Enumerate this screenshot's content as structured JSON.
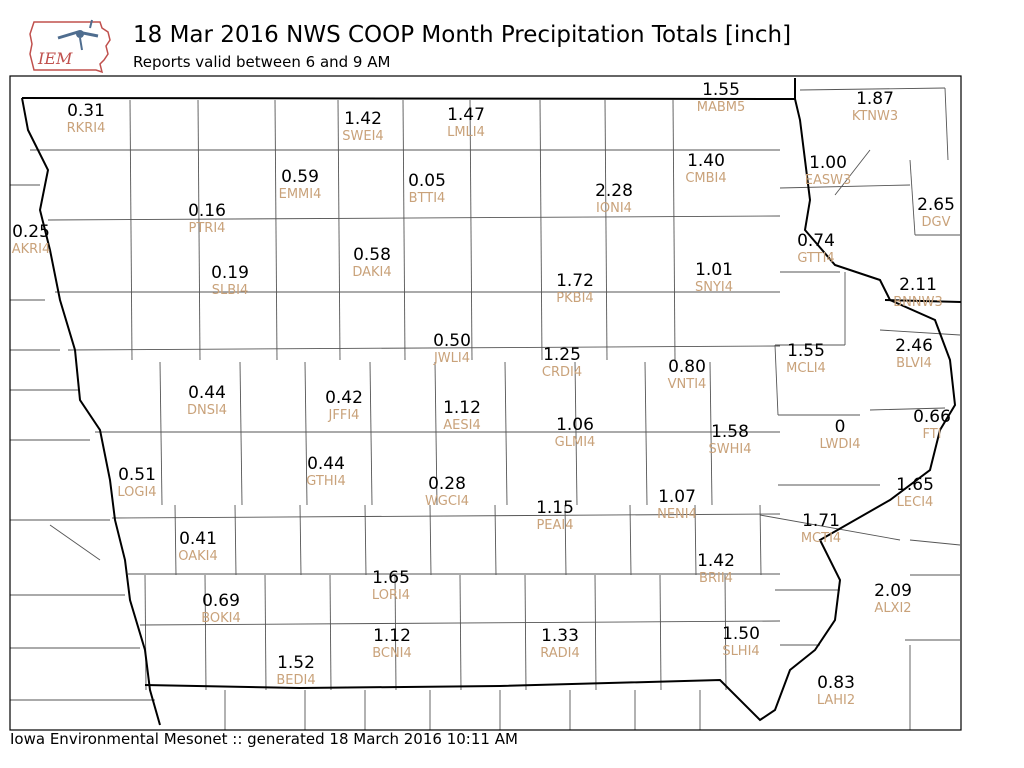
{
  "header": {
    "logo_text": "IEM",
    "title": "18 Mar 2016 NWS COOP Month Precipitation Totals [inch]",
    "subtitle": "Reports valid between 6 and 9 AM"
  },
  "footer": {
    "text": "Iowa Environmental Mesonet :: generated 18 March 2016 10:11 AM"
  },
  "colors": {
    "value": "#000000",
    "station": "#c9a27a",
    "state_line": "#000000",
    "county_line": "#555555"
  },
  "stations": [
    {
      "id": "RKRI4",
      "value": "0.31"
    },
    {
      "id": "SWEI4",
      "value": "1.42"
    },
    {
      "id": "LMLI4",
      "value": "1.47"
    },
    {
      "id": "MABM5",
      "value": "1.55"
    },
    {
      "id": "KTNW3",
      "value": "1.87"
    },
    {
      "id": "CMBI4",
      "value": "1.40"
    },
    {
      "id": "EASW3",
      "value": "1.00"
    },
    {
      "id": "EMMI4",
      "value": "0.59"
    },
    {
      "id": "BTTI4",
      "value": "0.05"
    },
    {
      "id": "IONI4",
      "value": "2.28"
    },
    {
      "id": "PTRI4",
      "value": "0.16"
    },
    {
      "id": "DGV",
      "value": "2.65"
    },
    {
      "id": "AKRI4",
      "value": "0.25"
    },
    {
      "id": "GTTI4",
      "value": "0.74"
    },
    {
      "id": "DAKI4",
      "value": "0.58"
    },
    {
      "id": "SLBI4",
      "value": "0.19"
    },
    {
      "id": "PKBI4",
      "value": "1.72"
    },
    {
      "id": "SNYI4",
      "value": "1.01"
    },
    {
      "id": "BNNW3",
      "value": "2.11"
    },
    {
      "id": "JWLI4",
      "value": "0.50"
    },
    {
      "id": "CRDI4",
      "value": "1.25"
    },
    {
      "id": "VNTI4",
      "value": "0.80"
    },
    {
      "id": "MCLI4",
      "value": "1.55"
    },
    {
      "id": "BLVI4",
      "value": "2.46"
    },
    {
      "id": "DNSI4",
      "value": "0.44"
    },
    {
      "id": "JFFI4",
      "value": "0.42"
    },
    {
      "id": "AESI4",
      "value": "1.12"
    },
    {
      "id": "GLMI4",
      "value": "1.06"
    },
    {
      "id": "SWHI4",
      "value": "1.58"
    },
    {
      "id": "LWDI4",
      "value": "0"
    },
    {
      "id": "FTI",
      "value": "0.66"
    },
    {
      "id": "LOGI4",
      "value": "0.51"
    },
    {
      "id": "GTHI4",
      "value": "0.44"
    },
    {
      "id": "WGCI4",
      "value": "0.28"
    },
    {
      "id": "LECI4",
      "value": "1.65"
    },
    {
      "id": "PEAI4",
      "value": "1.15"
    },
    {
      "id": "NENI4",
      "value": "1.07"
    },
    {
      "id": "MCTI4",
      "value": "1.71"
    },
    {
      "id": "OAKI4",
      "value": "0.41"
    },
    {
      "id": "BRII4",
      "value": "1.42"
    },
    {
      "id": "LORI4",
      "value": "1.65"
    },
    {
      "id": "ALXI2",
      "value": "2.09"
    },
    {
      "id": "BOKI4",
      "value": "0.69"
    },
    {
      "id": "SLHI4",
      "value": "1.50"
    },
    {
      "id": "BCNI4",
      "value": "1.12"
    },
    {
      "id": "RADI4",
      "value": "1.33"
    },
    {
      "id": "BEDI4",
      "value": "1.52"
    },
    {
      "id": "LAHI2",
      "value": "0.83"
    }
  ]
}
